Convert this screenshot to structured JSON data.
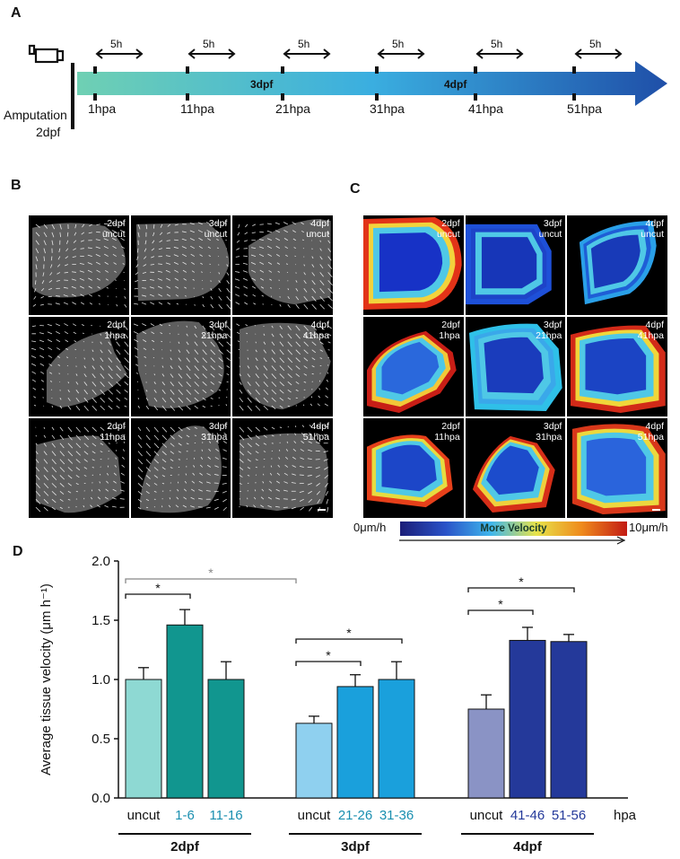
{
  "panel_labels": {
    "a": "A",
    "b": "B",
    "c": "C",
    "d": "D"
  },
  "timeline": {
    "interval_label": "5h",
    "start_label_line1": "Amputation",
    "start_label_line2": "2dpf",
    "ticks": [
      "1hpa",
      "11hpa",
      "21hpa",
      "31hpa",
      "41hpa",
      "51hpa"
    ],
    "stage_labels": [
      "3dpf",
      "4dpf"
    ],
    "colors": {
      "start": "#6fd0b3",
      "mid": "#3aaee0",
      "end": "#1f4fa8"
    }
  },
  "grid_b": {
    "labels": [
      "2dpf\nuncut",
      "3dpf\nuncut",
      "4dpf\nuncut",
      "2dpf\n1hpa",
      "3dpf\n21hpa",
      "4dpf\n41hpa",
      "2dpf\n11hpa",
      "3dpf\n31hpa",
      "4dpf\n51hpa"
    ]
  },
  "grid_c": {
    "labels": [
      "2dpf\nuncut",
      "3dpf\nuncut",
      "4dpf\nuncut",
      "2dpf\n1hpa",
      "3dpf\n21hpa",
      "4dpf\n41hpa",
      "2dpf\n11hpa",
      "3dpf\n31hpa",
      "4dpf\n51hpa"
    ],
    "colorbar": {
      "min_label": "0μm/h",
      "max_label": "10μm/h",
      "center_label": "More Velocity"
    }
  },
  "chart_data": {
    "type": "bar",
    "ylabel": "Average tissue velocity (μm h⁻¹)",
    "ylim": [
      0,
      2.0
    ],
    "yticks": [
      "0.0",
      "0.5",
      "1.0",
      "1.5",
      "2.0"
    ],
    "unit_label": "hpa",
    "groups": [
      {
        "name": "2dpf",
        "bars": [
          {
            "label": "uncut",
            "value": 1.0,
            "err": 0.1,
            "color": "#8ed9d3",
            "label_color": "#111111"
          },
          {
            "label": "1-6",
            "value": 1.46,
            "err": 0.13,
            "color": "#11968f",
            "label_color": "#1a8fb0"
          },
          {
            "label": "11-16",
            "value": 1.0,
            "err": 0.15,
            "color": "#11968f",
            "label_color": "#1a8fb0"
          }
        ]
      },
      {
        "name": "3dpf",
        "bars": [
          {
            "label": "uncut",
            "value": 0.63,
            "err": 0.06,
            "color": "#8fd0ef",
            "label_color": "#111111"
          },
          {
            "label": "21-26",
            "value": 0.94,
            "err": 0.1,
            "color": "#1aa0dc",
            "label_color": "#1a8fb0"
          },
          {
            "label": "31-36",
            "value": 1.0,
            "err": 0.15,
            "color": "#1aa0dc",
            "label_color": "#1a8fb0"
          }
        ]
      },
      {
        "name": "4dpf",
        "bars": [
          {
            "label": "uncut",
            "value": 0.75,
            "err": 0.12,
            "color": "#8a93c5",
            "label_color": "#111111"
          },
          {
            "label": "41-46",
            "value": 1.33,
            "err": 0.11,
            "color": "#24399a",
            "label_color": "#24399a"
          },
          {
            "label": "51-56",
            "value": 1.32,
            "err": 0.06,
            "color": "#24399a",
            "label_color": "#24399a"
          }
        ]
      }
    ],
    "significance": [
      {
        "from": [
          0,
          0
        ],
        "to": [
          0,
          1
        ],
        "label": "*",
        "color": "#111111"
      },
      {
        "from": [
          0,
          0
        ],
        "to": [
          1,
          0
        ],
        "label": "*",
        "color": "#888888"
      },
      {
        "from": [
          1,
          0
        ],
        "to": [
          1,
          1
        ],
        "label": "*",
        "color": "#111111"
      },
      {
        "from": [
          1,
          0
        ],
        "to": [
          1,
          2
        ],
        "label": "*",
        "color": "#111111"
      },
      {
        "from": [
          2,
          0
        ],
        "to": [
          2,
          1
        ],
        "label": "*",
        "color": "#111111"
      },
      {
        "from": [
          2,
          0
        ],
        "to": [
          2,
          2
        ],
        "label": "*",
        "color": "#111111"
      }
    ]
  }
}
